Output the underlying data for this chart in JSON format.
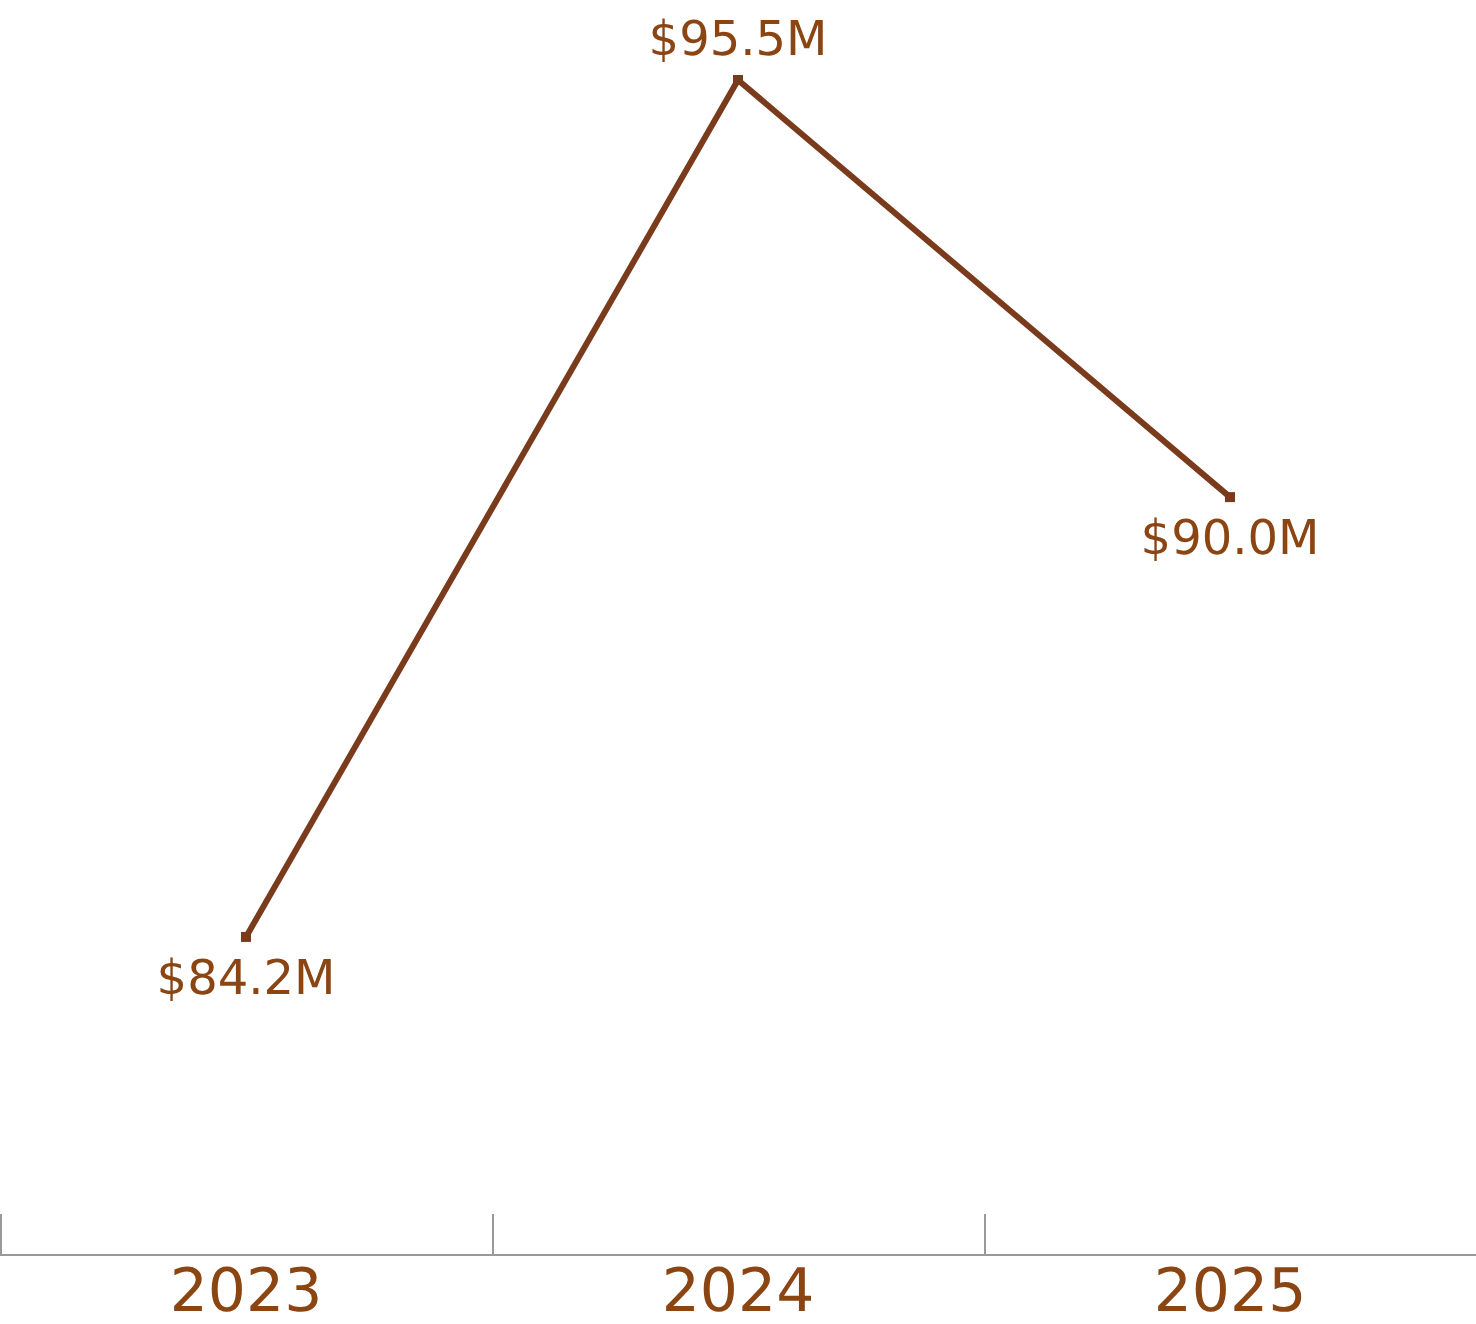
{
  "chart_data": {
    "type": "line",
    "categories": [
      "2023",
      "2024",
      "2025"
    ],
    "series": [
      {
        "color": "#7a3b1c",
        "values": [
          84.2,
          95.5,
          90.0
        ],
        "value_labels": [
          "$84.2M",
          "$95.5M",
          "$90.0M"
        ]
      }
    ],
    "marker": "square",
    "line_style": "solid",
    "tick_labels": "x"
  }
}
